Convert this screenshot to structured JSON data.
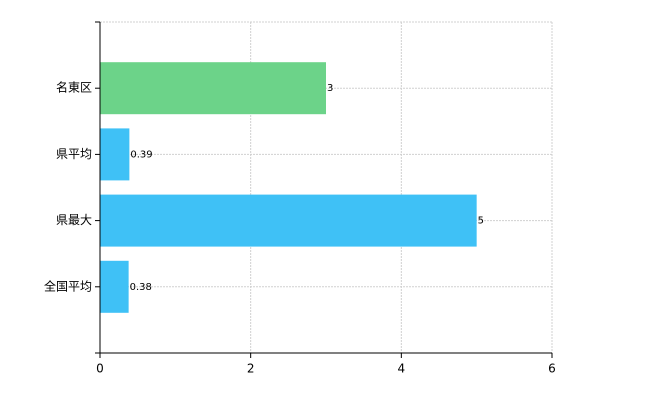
{
  "chart_data": {
    "type": "barh",
    "categories": [
      "名東区",
      "県平均",
      "県最大",
      "全国平均"
    ],
    "values": [
      3,
      0.39,
      5,
      0.38
    ],
    "colors": [
      "#6cd389",
      "#3fc1f6",
      "#3fc1f6",
      "#3fc1f6"
    ],
    "xlim": [
      0,
      6
    ],
    "xticks": [
      0,
      2,
      4,
      6
    ],
    "grid": true
  }
}
